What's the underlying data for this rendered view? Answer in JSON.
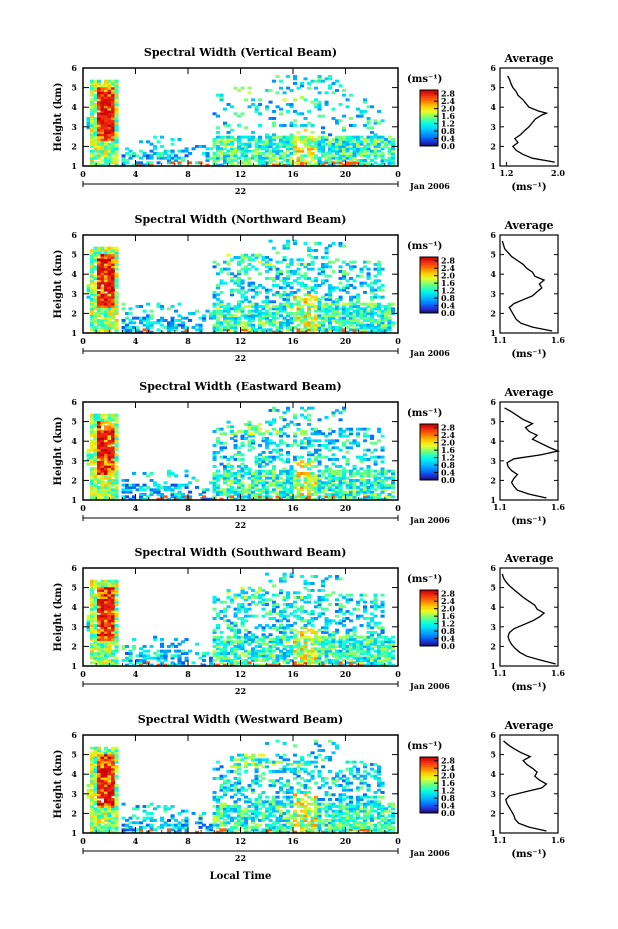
{
  "figure": {
    "xlabel": "Local Time",
    "date_label": "Jan 2006",
    "day_label": "22",
    "ylabel": "Height (km)",
    "colorbar_unit": "(ms⁻¹)",
    "average_title": "Average",
    "average_xlabel": "(ms⁻¹)"
  },
  "chart_data": [
    {
      "type": "heatmap",
      "title": "Spectral Width (Vertical Beam)",
      "ylabel": "Height (km)",
      "x_ticks": [
        "0",
        "4",
        "8",
        "12",
        "16",
        "20",
        "0"
      ],
      "y_ticks": [
        "1",
        "2",
        "3",
        "4",
        "5",
        "6"
      ],
      "xlim": [
        0,
        24
      ],
      "ylim": [
        1,
        6
      ],
      "colorbar": {
        "ticks": [
          "0.0",
          "0.4",
          "0.8",
          "1.2",
          "1.6",
          "2.0",
          "2.4",
          "2.8"
        ],
        "range": [
          0,
          3
        ]
      },
      "average": {
        "title": "Average",
        "xlim": [
          1.1,
          2.0
        ],
        "x_ticks": [
          "1.2",
          "2.0"
        ],
        "xlabel": "(ms⁻¹)",
        "profile": [
          [
            1.2,
            1.95
          ],
          [
            1.4,
            1.6
          ],
          [
            1.6,
            1.45
          ],
          [
            1.8,
            1.35
          ],
          [
            2.0,
            1.3
          ],
          [
            2.2,
            1.38
          ],
          [
            2.4,
            1.33
          ],
          [
            2.6,
            1.42
          ],
          [
            2.8,
            1.48
          ],
          [
            3.0,
            1.55
          ],
          [
            3.2,
            1.6
          ],
          [
            3.4,
            1.65
          ],
          [
            3.6,
            1.75
          ],
          [
            3.7,
            1.82
          ],
          [
            3.8,
            1.7
          ],
          [
            4.0,
            1.55
          ],
          [
            4.2,
            1.5
          ],
          [
            4.4,
            1.45
          ],
          [
            4.6,
            1.38
          ],
          [
            4.8,
            1.35
          ],
          [
            5.0,
            1.3
          ],
          [
            5.2,
            1.27
          ],
          [
            5.4,
            1.25
          ],
          [
            5.6,
            1.22
          ]
        ]
      }
    },
    {
      "type": "heatmap",
      "title": "Spectral Width (Northward Beam)",
      "ylabel": "Height (km)",
      "x_ticks": [
        "0",
        "4",
        "8",
        "12",
        "16",
        "20",
        "0"
      ],
      "y_ticks": [
        "1",
        "2",
        "3",
        "4",
        "5",
        "6"
      ],
      "xlim": [
        0,
        24
      ],
      "ylim": [
        1,
        6
      ],
      "colorbar": {
        "ticks": [
          "0.0",
          "0.4",
          "0.8",
          "1.2",
          "1.6",
          "2.0",
          "2.4",
          "2.8"
        ],
        "range": [
          0,
          3
        ]
      },
      "average": {
        "title": "Average",
        "xlim": [
          1.1,
          1.6
        ],
        "x_ticks": [
          "1.1",
          "1.6"
        ],
        "xlabel": "(ms⁻¹)",
        "profile": [
          [
            1.1,
            1.55
          ],
          [
            1.3,
            1.38
          ],
          [
            1.5,
            1.28
          ],
          [
            1.7,
            1.24
          ],
          [
            1.9,
            1.22
          ],
          [
            2.1,
            1.2
          ],
          [
            2.3,
            1.18
          ],
          [
            2.5,
            1.22
          ],
          [
            2.7,
            1.3
          ],
          [
            2.9,
            1.38
          ],
          [
            3.1,
            1.42
          ],
          [
            3.3,
            1.46
          ],
          [
            3.5,
            1.44
          ],
          [
            3.7,
            1.48
          ],
          [
            3.9,
            1.4
          ],
          [
            4.1,
            1.38
          ],
          [
            4.3,
            1.33
          ],
          [
            4.5,
            1.3
          ],
          [
            4.7,
            1.25
          ],
          [
            4.9,
            1.2
          ],
          [
            5.1,
            1.17
          ],
          [
            5.3,
            1.14
          ],
          [
            5.5,
            1.13
          ],
          [
            5.7,
            1.12
          ]
        ]
      }
    },
    {
      "type": "heatmap",
      "title": "Spectral Width (Eastward Beam)",
      "ylabel": "Height (km)",
      "x_ticks": [
        "0",
        "4",
        "8",
        "12",
        "16",
        "20",
        "0"
      ],
      "y_ticks": [
        "1",
        "2",
        "3",
        "4",
        "5",
        "6"
      ],
      "xlim": [
        0,
        24
      ],
      "ylim": [
        1,
        6
      ],
      "colorbar": {
        "ticks": [
          "0.0",
          "0.4",
          "0.8",
          "1.2",
          "1.6",
          "2.0",
          "2.4",
          "2.8"
        ],
        "range": [
          0,
          3
        ]
      },
      "average": {
        "title": "Average",
        "xlim": [
          1.1,
          1.6
        ],
        "x_ticks": [
          "1.1",
          "1.6"
        ],
        "xlabel": "(ms⁻¹)",
        "profile": [
          [
            1.1,
            1.5
          ],
          [
            1.3,
            1.35
          ],
          [
            1.5,
            1.25
          ],
          [
            1.7,
            1.22
          ],
          [
            1.9,
            1.2
          ],
          [
            2.1,
            1.22
          ],
          [
            2.3,
            1.25
          ],
          [
            2.5,
            1.2
          ],
          [
            2.7,
            1.17
          ],
          [
            2.9,
            1.16
          ],
          [
            3.1,
            1.22
          ],
          [
            3.3,
            1.45
          ],
          [
            3.5,
            1.6
          ],
          [
            3.7,
            1.52
          ],
          [
            3.9,
            1.45
          ],
          [
            4.1,
            1.38
          ],
          [
            4.3,
            1.42
          ],
          [
            4.5,
            1.35
          ],
          [
            4.7,
            1.32
          ],
          [
            4.9,
            1.38
          ],
          [
            5.1,
            1.3
          ],
          [
            5.3,
            1.25
          ],
          [
            5.5,
            1.2
          ],
          [
            5.7,
            1.14
          ]
        ]
      }
    },
    {
      "type": "heatmap",
      "title": "Spectral Width (Southward Beam)",
      "ylabel": "Height (km)",
      "x_ticks": [
        "0",
        "4",
        "8",
        "12",
        "16",
        "20",
        "0"
      ],
      "y_ticks": [
        "1",
        "2",
        "3",
        "4",
        "5",
        "6"
      ],
      "xlim": [
        0,
        24
      ],
      "ylim": [
        1,
        6
      ],
      "colorbar": {
        "ticks": [
          "0.0",
          "0.4",
          "0.8",
          "1.2",
          "1.6",
          "2.0",
          "2.4",
          "2.8"
        ],
        "range": [
          0,
          3
        ]
      },
      "average": {
        "title": "Average",
        "xlim": [
          1.1,
          1.6
        ],
        "x_ticks": [
          "1.1",
          "1.6"
        ],
        "xlabel": "(ms⁻¹)",
        "profile": [
          [
            1.1,
            1.58
          ],
          [
            1.3,
            1.45
          ],
          [
            1.5,
            1.33
          ],
          [
            1.7,
            1.27
          ],
          [
            1.9,
            1.23
          ],
          [
            2.1,
            1.2
          ],
          [
            2.3,
            1.18
          ],
          [
            2.5,
            1.17
          ],
          [
            2.7,
            1.18
          ],
          [
            2.9,
            1.22
          ],
          [
            3.1,
            1.3
          ],
          [
            3.3,
            1.38
          ],
          [
            3.5,
            1.44
          ],
          [
            3.7,
            1.48
          ],
          [
            3.9,
            1.42
          ],
          [
            4.1,
            1.4
          ],
          [
            4.3,
            1.35
          ],
          [
            4.5,
            1.3
          ],
          [
            4.7,
            1.26
          ],
          [
            4.9,
            1.22
          ],
          [
            5.1,
            1.18
          ],
          [
            5.3,
            1.15
          ],
          [
            5.5,
            1.13
          ],
          [
            5.7,
            1.12
          ]
        ]
      }
    },
    {
      "type": "heatmap",
      "title": "Spectral Width (Westward Beam)",
      "ylabel": "Height (km)",
      "x_ticks": [
        "0",
        "4",
        "8",
        "12",
        "16",
        "20",
        "0"
      ],
      "y_ticks": [
        "1",
        "2",
        "3",
        "4",
        "5",
        "6"
      ],
      "xlim": [
        0,
        24
      ],
      "ylim": [
        1,
        6
      ],
      "colorbar": {
        "ticks": [
          "0.0",
          "0.4",
          "0.8",
          "1.2",
          "1.6",
          "2.0",
          "2.4",
          "2.8"
        ],
        "range": [
          0,
          3
        ]
      },
      "average": {
        "title": "Average",
        "xlim": [
          1.1,
          1.6
        ],
        "x_ticks": [
          "1.1",
          "1.6"
        ],
        "xlabel": "(ms⁻¹)",
        "profile": [
          [
            1.1,
            1.5
          ],
          [
            1.3,
            1.35
          ],
          [
            1.5,
            1.26
          ],
          [
            1.7,
            1.23
          ],
          [
            1.9,
            1.22
          ],
          [
            2.1,
            1.2
          ],
          [
            2.3,
            1.18
          ],
          [
            2.5,
            1.16
          ],
          [
            2.7,
            1.15
          ],
          [
            2.9,
            1.18
          ],
          [
            3.1,
            1.32
          ],
          [
            3.3,
            1.46
          ],
          [
            3.5,
            1.5
          ],
          [
            3.7,
            1.44
          ],
          [
            3.9,
            1.4
          ],
          [
            4.1,
            1.42
          ],
          [
            4.3,
            1.38
          ],
          [
            4.5,
            1.33
          ],
          [
            4.7,
            1.3
          ],
          [
            4.9,
            1.36
          ],
          [
            5.1,
            1.28
          ],
          [
            5.3,
            1.22
          ],
          [
            5.5,
            1.17
          ],
          [
            5.7,
            1.13
          ]
        ]
      }
    }
  ]
}
